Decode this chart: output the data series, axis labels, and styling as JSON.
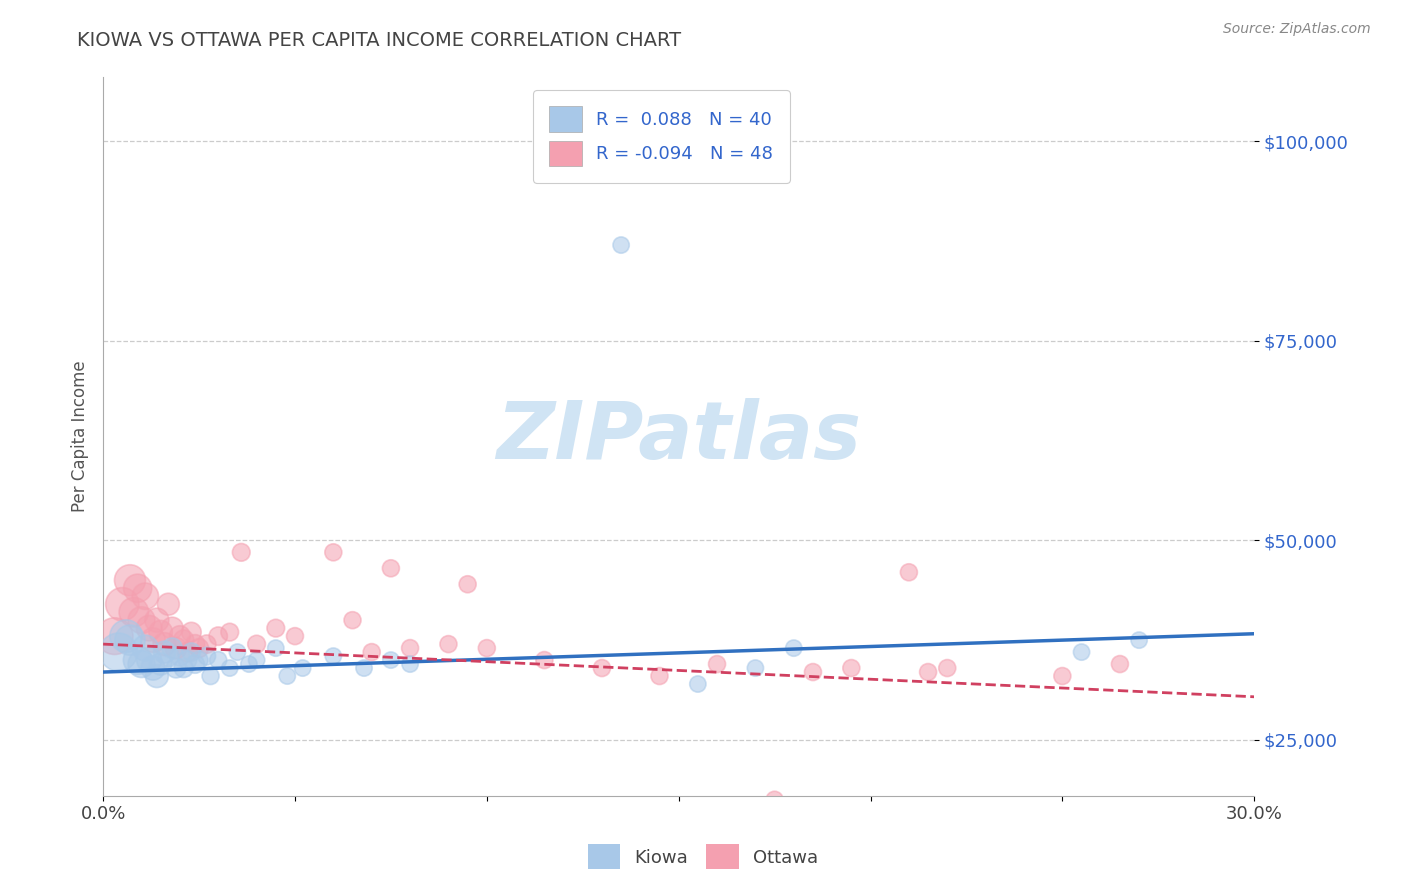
{
  "title": "KIOWA VS OTTAWA PER CAPITA INCOME CORRELATION CHART",
  "source": "Source: ZipAtlas.com",
  "xlabel": "",
  "ylabel": "Per Capita Income",
  "xlim": [
    0.0,
    0.3
  ],
  "ylim": [
    18000,
    108000
  ],
  "yticks": [
    25000,
    50000,
    75000,
    100000
  ],
  "ytick_labels": [
    "$25,000",
    "$50,000",
    "$75,000",
    "$100,000"
  ],
  "xticks": [
    0.0,
    0.05,
    0.1,
    0.15,
    0.2,
    0.25,
    0.3
  ],
  "xtick_labels": [
    "0.0%",
    "",
    "",
    "",
    "",
    "",
    "30.0%"
  ],
  "kiowa_R": 0.088,
  "kiowa_N": 40,
  "ottawa_R": -0.094,
  "ottawa_N": 48,
  "kiowa_color": "#a8c8e8",
  "ottawa_color": "#f4a0b0",
  "kiowa_line_color": "#3070c0",
  "ottawa_line_color": "#d04060",
  "background_color": "#ffffff",
  "watermark": "ZIPatlas",
  "watermark_color": "#d0e4f4",
  "legend_color": "#3366cc",
  "kiowa_line_intercept": 33500,
  "kiowa_line_slope": 16000,
  "ottawa_line_intercept": 37000,
  "ottawa_line_slope": -22000,
  "kiowa_x": [
    0.004,
    0.006,
    0.007,
    0.009,
    0.01,
    0.011,
    0.012,
    0.013,
    0.014,
    0.015,
    0.016,
    0.017,
    0.018,
    0.019,
    0.02,
    0.021,
    0.022,
    0.023,
    0.024,
    0.025,
    0.027,
    0.028,
    0.03,
    0.033,
    0.035,
    0.038,
    0.04,
    0.045,
    0.048,
    0.052,
    0.06,
    0.068,
    0.075,
    0.08,
    0.135,
    0.155,
    0.17,
    0.18,
    0.255,
    0.27
  ],
  "kiowa_y": [
    36000,
    38000,
    37500,
    35000,
    34500,
    36500,
    35000,
    34000,
    33000,
    34500,
    36000,
    35500,
    36500,
    34000,
    35500,
    34000,
    35000,
    36000,
    34500,
    35000,
    35500,
    33000,
    35000,
    34000,
    36000,
    34500,
    35000,
    36500,
    33000,
    34000,
    35500,
    34000,
    35000,
    34500,
    87000,
    32000,
    34000,
    36500,
    36000,
    37500
  ],
  "kiowa_size": [
    300,
    220,
    190,
    170,
    150,
    140,
    130,
    120,
    110,
    100,
    100,
    90,
    85,
    80,
    80,
    75,
    70,
    70,
    70,
    65,
    65,
    60,
    60,
    55,
    55,
    55,
    55,
    55,
    55,
    55,
    55,
    55,
    55,
    55,
    55,
    55,
    55,
    55,
    55,
    55
  ],
  "ottawa_x": [
    0.003,
    0.005,
    0.007,
    0.008,
    0.009,
    0.01,
    0.011,
    0.012,
    0.013,
    0.014,
    0.015,
    0.016,
    0.017,
    0.018,
    0.019,
    0.02,
    0.021,
    0.022,
    0.023,
    0.024,
    0.025,
    0.027,
    0.03,
    0.033,
    0.036,
    0.04,
    0.045,
    0.05,
    0.06,
    0.065,
    0.07,
    0.075,
    0.08,
    0.09,
    0.095,
    0.1,
    0.115,
    0.13,
    0.145,
    0.16,
    0.175,
    0.185,
    0.195,
    0.21,
    0.215,
    0.22,
    0.25,
    0.265
  ],
  "ottawa_y": [
    38000,
    42000,
    45000,
    41000,
    44000,
    40000,
    43000,
    39000,
    37500,
    40000,
    38500,
    37000,
    42000,
    39000,
    36500,
    38000,
    37500,
    36000,
    38500,
    37000,
    36500,
    37000,
    38000,
    38500,
    48500,
    37000,
    39000,
    38000,
    48500,
    40000,
    36000,
    46500,
    36500,
    37000,
    44500,
    36500,
    35000,
    34000,
    33000,
    34500,
    17500,
    33500,
    34000,
    46000,
    33500,
    34000,
    33000,
    34500
  ],
  "ottawa_size": [
    280,
    230,
    200,
    180,
    165,
    150,
    145,
    135,
    125,
    120,
    115,
    110,
    100,
    100,
    95,
    90,
    85,
    80,
    80,
    75,
    75,
    70,
    70,
    65,
    65,
    65,
    65,
    60,
    60,
    60,
    60,
    60,
    60,
    60,
    60,
    60,
    60,
    60,
    60,
    60,
    60,
    60,
    60,
    60,
    60,
    60,
    60,
    60
  ]
}
